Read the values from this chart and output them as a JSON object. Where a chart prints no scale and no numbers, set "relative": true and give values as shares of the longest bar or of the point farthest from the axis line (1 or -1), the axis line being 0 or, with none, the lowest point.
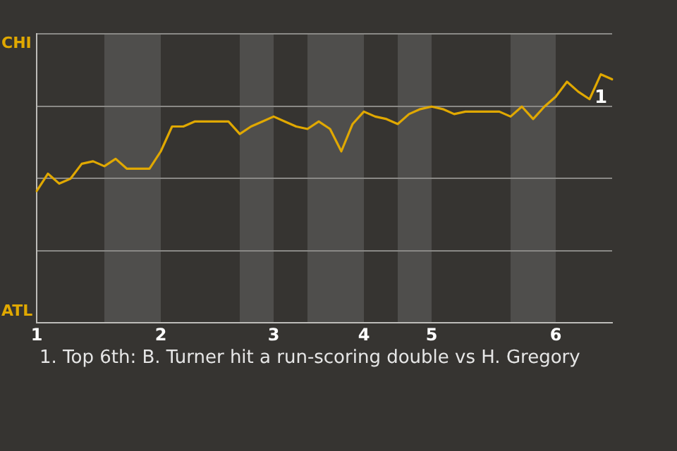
{
  "chart_data": {
    "type": "line",
    "relative": true,
    "categories": [
      "1",
      null,
      null,
      null,
      null,
      null,
      null,
      null,
      null,
      null,
      null,
      "2",
      null,
      null,
      null,
      null,
      null,
      null,
      null,
      null,
      null,
      "3",
      null,
      null,
      null,
      null,
      null,
      null,
      null,
      "4",
      null,
      null,
      null,
      null,
      null,
      "5",
      null,
      null,
      null,
      null,
      null,
      null,
      null,
      null,
      null,
      null,
      "6",
      null,
      null,
      null,
      null,
      null
    ],
    "series": [
      {
        "color": "#e0a800",
        "values": [
          0.53,
          0.6,
          0.56,
          0.58,
          0.64,
          0.65,
          0.63,
          0.66,
          0.62,
          0.62,
          0.62,
          0.69,
          0.79,
          0.79,
          0.81,
          0.81,
          0.81,
          0.81,
          0.76,
          0.79,
          0.81,
          0.83,
          0.81,
          0.79,
          0.78,
          0.81,
          0.78,
          0.69,
          0.8,
          0.85,
          0.83,
          0.82,
          0.8,
          0.84,
          0.86,
          0.87,
          0.86,
          0.84,
          0.85,
          0.85,
          0.85,
          0.85,
          0.83,
          0.87,
          0.82,
          0.87,
          0.91,
          0.97,
          0.93,
          0.9,
          1,
          0.98
        ]
      }
    ],
    "grid": "y",
    "tick_labels": "x",
    "marker": "none",
    "annotations": [
      "CHI",
      "ATL",
      {
        "text": "1",
        "y": 1
      },
      "1. Top 6th: B. Turner hit a run-scoring double vs H. Gregory"
    ]
  }
}
